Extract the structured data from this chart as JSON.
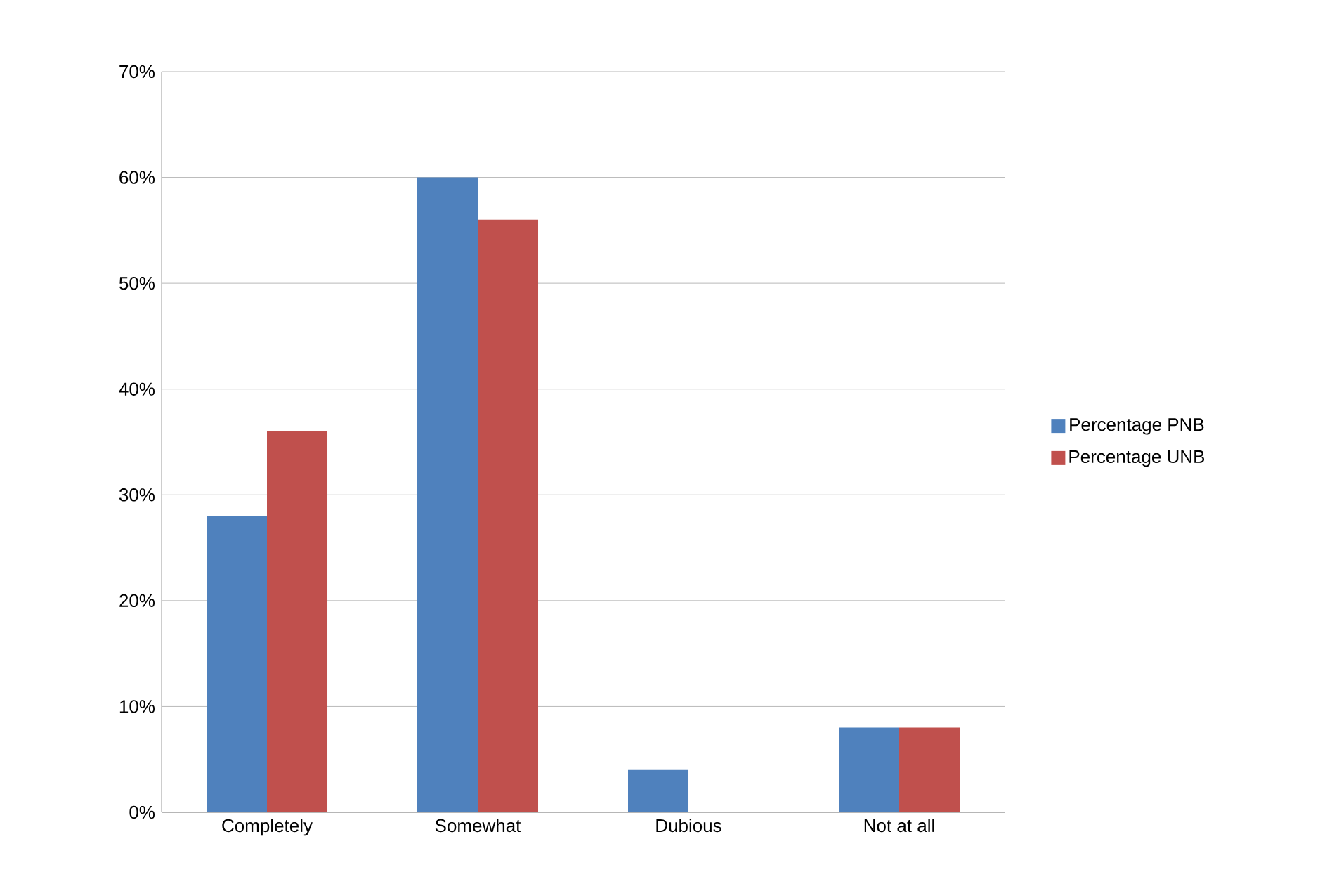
{
  "chart_data": {
    "type": "bar",
    "categories": [
      "Completely",
      "Somewhat",
      "Dubious",
      "Not at all"
    ],
    "series": [
      {
        "name": "Percentage PNB",
        "color": "#4f81bd",
        "values": [
          28,
          60,
          4,
          8
        ]
      },
      {
        "name": "Percentage UNB",
        "color": "#c0504d",
        "values": [
          36,
          56,
          0,
          8
        ]
      }
    ],
    "ylim": [
      0,
      70
    ],
    "yticks": [
      {
        "value": 0,
        "label": "0%"
      },
      {
        "value": 10,
        "label": "10%"
      },
      {
        "value": 20,
        "label": "20%"
      },
      {
        "value": 30,
        "label": "30%"
      },
      {
        "value": 40,
        "label": "40%"
      },
      {
        "value": 50,
        "label": "50%"
      },
      {
        "value": 60,
        "label": "60%"
      },
      {
        "value": 70,
        "label": "70%"
      }
    ],
    "grid": "y",
    "legend": "right"
  }
}
